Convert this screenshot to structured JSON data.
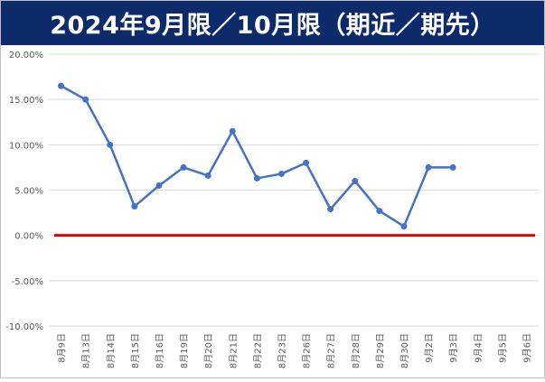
{
  "title": "2024年9月限／10月限（期近／期先）",
  "colors": {
    "title_bg": "#0d2a6b",
    "title_text": "#ffffff",
    "series_line": "#4472c4",
    "zero_line": "#e00000",
    "grid": "#d9d9d9",
    "axis_text": "#595959"
  },
  "chart_data": {
    "type": "line",
    "title": "2024年9月限／10月限（期近／期先）",
    "xlabel": "",
    "ylabel": "",
    "ylim": [
      -0.1,
      0.2
    ],
    "y_tick_values": [
      0.2,
      0.15,
      0.1,
      0.05,
      0.0,
      -0.05,
      -0.1
    ],
    "y_tick_labels": [
      "20.00%",
      "15.00%",
      "10.00%",
      "5.00%",
      "0.00%",
      "-5.00%",
      "-10.00%"
    ],
    "grid": true,
    "legend": "none",
    "categories": [
      "8月9日",
      "8月13日",
      "8月14日",
      "8月15日",
      "8月16日",
      "8月19日",
      "8月20日",
      "8月21日",
      "8月22日",
      "8月23日",
      "8月26日",
      "8月27日",
      "8月28日",
      "8月29日",
      "8月30日",
      "9月2日",
      "9月3日",
      "9月4日",
      "9月5日",
      "9月6日"
    ],
    "series": [
      {
        "values": [
          0.165,
          0.15,
          0.1,
          0.032,
          0.055,
          0.075,
          0.066,
          0.115,
          0.063,
          0.068,
          0.08,
          0.029,
          0.06,
          0.027,
          0.01,
          0.075,
          0.075,
          null,
          null,
          null
        ]
      }
    ],
    "reference_line": 0.0
  }
}
